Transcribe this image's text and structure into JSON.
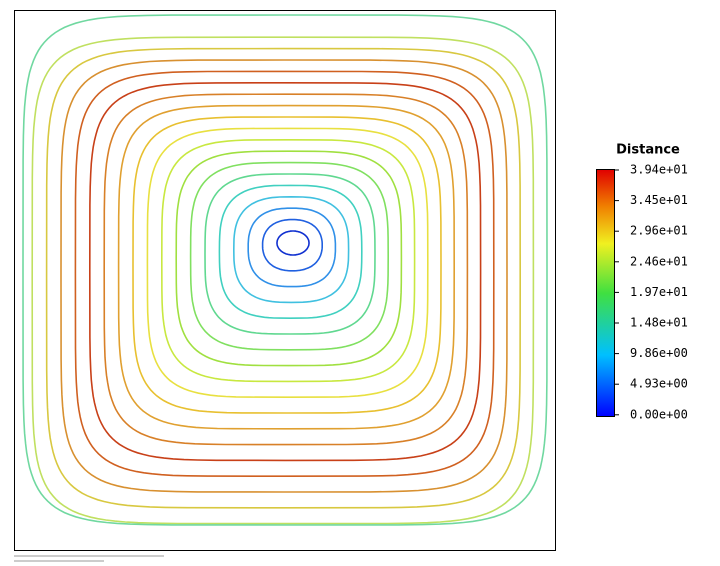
{
  "colorbar": {
    "title": "Distance",
    "labels": [
      "3.94e+01",
      "3.45e+01",
      "2.96e+01",
      "2.46e+01",
      "1.97e+01",
      "1.48e+01",
      "9.86e+00",
      "4.93e+00",
      "0.00e+00"
    ]
  }
}
